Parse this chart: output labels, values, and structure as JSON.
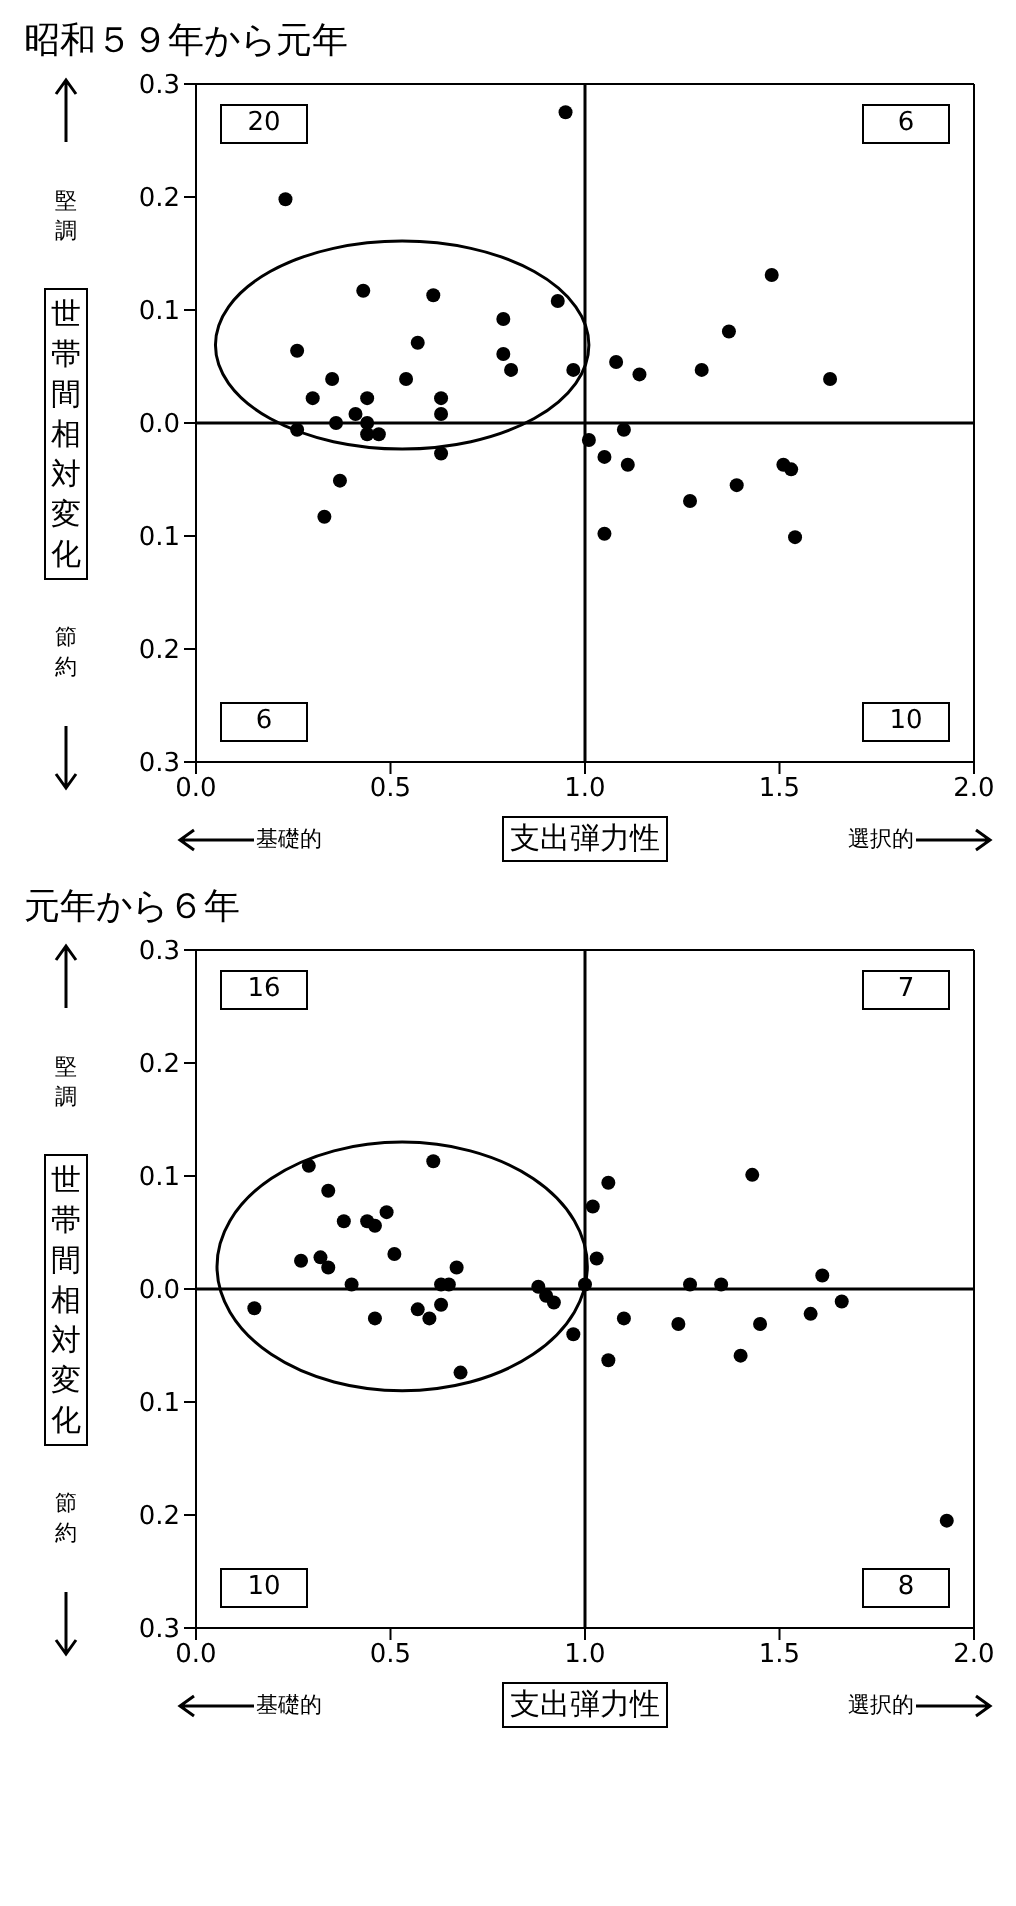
{
  "chart_data": [
    {
      "type": "scatter",
      "title": "昭和５９年から元年",
      "xlabel": "支出弾力性",
      "ylabel": "世帯間相対変化",
      "annotations": [
        "20",
        "6",
        "6",
        "10",
        "堅調",
        "節約",
        "基礎的",
        "選択的"
      ],
      "series": [
        {
          "color": "#000000",
          "x": [
            0.95,
            0.23,
            0.43,
            0.61,
            0.93,
            0.79,
            0.57,
            0.26,
            0.79,
            0.81,
            0.97,
            0.35,
            0.54,
            0.3,
            0.44,
            0.63,
            0.41,
            0.63,
            0.36,
            0.44,
            0.26,
            0.44,
            0.47,
            0.63,
            0.37,
            0.33,
            1.01,
            1.48,
            1.37,
            1.08,
            1.14,
            1.3,
            1.63,
            1.1,
            1.05,
            1.11,
            1.51,
            1.53,
            1.39,
            1.27,
            1.05,
            1.54
          ],
          "values": [
            0.275,
            0.198,
            0.117,
            0.113,
            0.108,
            0.092,
            0.071,
            0.064,
            0.061,
            0.047,
            0.047,
            0.039,
            0.039,
            0.022,
            0.022,
            0.022,
            0.008,
            0.008,
            0.0,
            0.0,
            -0.006,
            -0.01,
            -0.01,
            -0.027,
            -0.051,
            -0.083,
            -0.015,
            0.131,
            0.081,
            0.054,
            0.043,
            0.047,
            0.039,
            -0.006,
            -0.03,
            -0.037,
            -0.037,
            -0.041,
            -0.055,
            -0.069,
            -0.098,
            -0.101
          ]
        }
      ],
      "xlim": [
        0,
        2
      ],
      "xticks": [
        {
          "value": 0,
          "label": "0.0"
        },
        {
          "value": 0.5,
          "label": "0.5"
        },
        {
          "value": 1,
          "label": "1.0"
        },
        {
          "value": 1.5,
          "label": "1.5"
        },
        {
          "value": 2,
          "label": "2.0"
        }
      ],
      "ylim": [
        -0.3,
        0.3
      ],
      "yticks": [
        {
          "value": -0.3,
          "label": "0.3"
        },
        {
          "value": -0.2,
          "label": "0.2"
        },
        {
          "value": -0.1,
          "label": "0.1"
        },
        {
          "value": 0,
          "label": "0.0"
        },
        0.1,
        0.2,
        0.3
      ],
      "ref_lines": [
        {
          "axis": "x",
          "value": 1,
          "color": "#000000"
        },
        {
          "axis": "y",
          "value": 0,
          "color": "#000000"
        }
      ],
      "grid": false,
      "legend": false,
      "marker": "circle"
    },
    {
      "type": "scatter",
      "title": "元年から６年",
      "xlabel": "支出弾力性",
      "ylabel": "世帯間相対変化",
      "annotations": [
        "16",
        "7",
        "10",
        "8",
        "堅調",
        "節約",
        "基礎的",
        "選択的"
      ],
      "series": [
        {
          "color": "#000000",
          "x": [
            0.29,
            0.61,
            0.34,
            0.38,
            0.44,
            0.46,
            0.49,
            0.27,
            0.32,
            0.34,
            0.51,
            0.67,
            0.4,
            0.63,
            0.65,
            0.88,
            1.0,
            0.9,
            0.92,
            0.15,
            0.57,
            0.63,
            0.6,
            0.46,
            0.97,
            0.68,
            1.02,
            1.06,
            1.03,
            1.43,
            1.27,
            1.35,
            1.61,
            1.66,
            1.1,
            1.24,
            1.45,
            1.58,
            1.06,
            1.4,
            1.93
          ],
          "values": [
            0.109,
            0.113,
            0.087,
            0.06,
            0.06,
            0.056,
            0.068,
            0.025,
            0.028,
            0.019,
            0.031,
            0.019,
            0.004,
            0.004,
            0.004,
            0.002,
            0.004,
            -0.006,
            -0.012,
            -0.017,
            -0.018,
            -0.014,
            -0.026,
            -0.026,
            -0.04,
            -0.074,
            0.073,
            0.094,
            0.027,
            0.101,
            0.004,
            0.004,
            0.012,
            -0.011,
            -0.026,
            -0.031,
            -0.031,
            -0.022,
            -0.063,
            -0.059,
            -0.205
          ]
        }
      ],
      "xlim": [
        0,
        2
      ],
      "xticks": [
        {
          "value": 0,
          "label": "0.0"
        },
        {
          "value": 0.5,
          "label": "0.5"
        },
        {
          "value": 1,
          "label": "1.0"
        },
        {
          "value": 1.5,
          "label": "1.5"
        },
        {
          "value": 2,
          "label": "2.0"
        }
      ],
      "ylim": [
        -0.3,
        0.3
      ],
      "yticks": [
        {
          "value": -0.3,
          "label": "0.3"
        },
        {
          "value": -0.2,
          "label": "0.2"
        },
        {
          "value": -0.1,
          "label": "0.1"
        },
        {
          "value": 0,
          "label": "0.0"
        },
        0.1,
        0.2,
        0.3
      ],
      "ref_lines": [
        {
          "axis": "x",
          "value": 1,
          "color": "#000000"
        },
        {
          "axis": "y",
          "value": 0,
          "color": "#000000"
        }
      ],
      "grid": false,
      "legend": false,
      "marker": "circle"
    }
  ]
}
